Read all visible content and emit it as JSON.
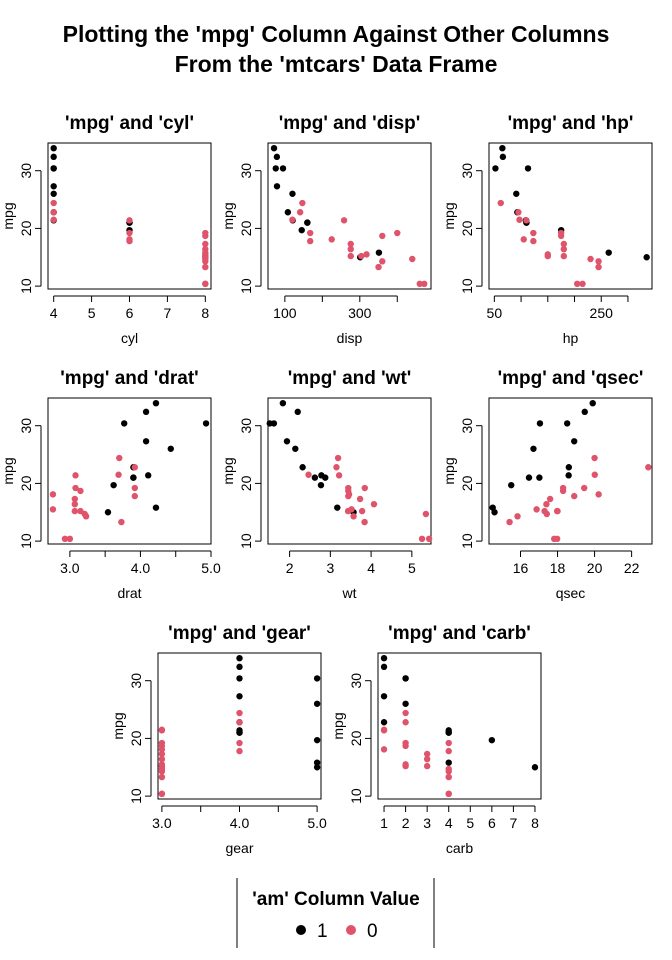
{
  "title_lines": [
    "Plotting the 'mpg' Column Against Other Columns",
    "From the 'mtcars' Data Frame"
  ],
  "legend": {
    "title": "'am' Column Value",
    "items": [
      {
        "label": "1",
        "color": "#000000"
      },
      {
        "label": "0",
        "color": "#DF536B"
      }
    ]
  },
  "chart_data": [
    {
      "type": "scatter",
      "title": "'mpg' and 'cyl'",
      "xlabel": "cyl",
      "ylabel": "mpg",
      "xlim": [
        3.85,
        8.15
      ],
      "ylim": [
        9.5,
        34.8
      ],
      "xticks": [
        4,
        5,
        6,
        7,
        8
      ],
      "xtick_labels": [
        "4",
        "5",
        "6",
        "7",
        "8"
      ],
      "yticks": [
        10,
        20,
        30
      ],
      "ytick_labels": [
        "10",
        "20",
        "30"
      ],
      "series": [
        {
          "name": "1",
          "color": "#000000",
          "x": [
            4,
            4,
            4,
            4,
            4,
            4,
            4,
            4,
            6,
            6,
            6
          ],
          "y": [
            33.9,
            32.4,
            30.4,
            30.4,
            27.3,
            26,
            21.4,
            22.8,
            21,
            21,
            19.7
          ]
        },
        {
          "name": "0",
          "color": "#DF536B",
          "x": [
            4,
            4,
            4,
            6,
            6,
            6,
            6,
            8,
            8,
            8,
            8,
            8,
            8,
            8,
            8,
            8,
            8,
            8,
            8,
            8,
            8
          ],
          "y": [
            24.4,
            22.8,
            21.5,
            21.4,
            18.1,
            19.2,
            17.8,
            18.7,
            14.3,
            16.4,
            17.3,
            15.2,
            10.4,
            10.4,
            14.7,
            15.5,
            15.2,
            13.3,
            19.2,
            15,
            15.8
          ]
        }
      ]
    },
    {
      "type": "scatter",
      "title": "'mpg' and 'disp'",
      "xlabel": "disp",
      "ylabel": "mpg",
      "xlim": [
        55,
        490
      ],
      "ylim": [
        9.5,
        34.8
      ],
      "xticks": [
        100,
        200,
        300,
        400
      ],
      "xtick_labels": [
        "100",
        "",
        "300",
        ""
      ],
      "yticks": [
        10,
        20,
        30
      ],
      "ytick_labels": [
        "10",
        "20",
        "30"
      ],
      "series": [
        {
          "name": "1",
          "color": "#000000",
          "x": [
            71.1,
            75.7,
            78.7,
            79,
            95.1,
            108,
            120.3,
            121,
            145,
            160,
            160,
            301,
            351
          ],
          "y": [
            33.9,
            30.4,
            32.4,
            27.3,
            30.4,
            22.8,
            26,
            21.4,
            19.7,
            21,
            21,
            15,
            15.8
          ]
        },
        {
          "name": "0",
          "color": "#DF536B",
          "x": [
            120.1,
            140.8,
            146.7,
            167.6,
            167.6,
            225,
            258,
            275.8,
            275.8,
            275.8,
            304,
            318,
            350,
            360,
            360,
            400,
            440,
            460,
            472
          ],
          "y": [
            21.5,
            22.8,
            24.4,
            19.2,
            17.8,
            18.1,
            21.4,
            16.4,
            17.3,
            15.2,
            15.2,
            15.5,
            13.3,
            18.7,
            14.3,
            19.2,
            14.7,
            10.4,
            10.4
          ]
        }
      ]
    },
    {
      "type": "scatter",
      "title": "'mpg' and 'hp'",
      "xlabel": "hp",
      "ylabel": "mpg",
      "xlim": [
        40,
        345
      ],
      "ylim": [
        9.5,
        34.8
      ],
      "xticks": [
        50,
        100,
        150,
        200,
        250,
        300
      ],
      "xtick_labels": [
        "50",
        "",
        "",
        "",
        "250",
        ""
      ],
      "yticks": [
        10,
        20,
        30
      ],
      "ytick_labels": [
        "10",
        "20",
        "30"
      ],
      "series": [
        {
          "name": "1",
          "color": "#000000",
          "x": [
            52,
            65,
            66,
            91,
            93,
            109,
            110,
            110,
            113,
            175,
            264,
            335
          ],
          "y": [
            30.4,
            33.9,
            32.4,
            26,
            22.8,
            21.4,
            21,
            21,
            30.4,
            19.7,
            15.8,
            15
          ]
        },
        {
          "name": "0",
          "color": "#DF536B",
          "x": [
            62,
            95,
            97,
            105,
            110,
            123,
            123,
            150,
            150,
            175,
            175,
            180,
            180,
            180,
            205,
            215,
            230,
            245,
            245
          ],
          "y": [
            24.4,
            22.8,
            21.5,
            18.1,
            21.4,
            19.2,
            17.8,
            15.5,
            15.2,
            18.7,
            19.2,
            16.4,
            17.3,
            15.2,
            10.4,
            10.4,
            14.7,
            14.3,
            13.3
          ]
        }
      ]
    },
    {
      "type": "scatter",
      "title": "'mpg' and 'drat'",
      "xlabel": "drat",
      "ylabel": "mpg",
      "xlim": [
        2.69,
        5.0
      ],
      "ylim": [
        9.5,
        34.8
      ],
      "xticks": [
        3.0,
        3.5,
        4.0,
        4.5,
        5.0
      ],
      "xtick_labels": [
        "3.0",
        "",
        "4.0",
        "",
        "5.0"
      ],
      "yticks": [
        10,
        20,
        30
      ],
      "ytick_labels": [
        "10",
        "20",
        "30"
      ],
      "series": [
        {
          "name": "1",
          "color": "#000000",
          "x": [
            3.54,
            3.62,
            3.77,
            3.9,
            3.9,
            3.9,
            4.08,
            4.08,
            4.11,
            4.22,
            4.22,
            4.43,
            4.93
          ],
          "y": [
            15,
            19.7,
            30.4,
            21,
            21,
            22.8,
            27.3,
            32.4,
            21.4,
            33.9,
            15.8,
            26,
            30.4
          ]
        },
        {
          "name": "0",
          "color": "#DF536B",
          "x": [
            2.76,
            2.76,
            2.93,
            3,
            3.07,
            3.07,
            3.07,
            3.08,
            3.08,
            3.15,
            3.15,
            3.21,
            3.23,
            3.69,
            3.7,
            3.73,
            3.92,
            3.92,
            3.92
          ],
          "y": [
            18.1,
            15.5,
            10.4,
            10.4,
            16.4,
            17.3,
            15.2,
            21.4,
            19.2,
            18.7,
            15.2,
            14.7,
            14.3,
            21.5,
            24.4,
            13.3,
            22.8,
            17.8,
            19.2
          ]
        }
      ]
    },
    {
      "type": "scatter",
      "title": "'mpg' and 'wt'",
      "xlabel": "wt",
      "ylabel": "mpg",
      "xlim": [
        1.47,
        5.47
      ],
      "ylim": [
        9.5,
        34.8
      ],
      "xticks": [
        2,
        3,
        4,
        5
      ],
      "xtick_labels": [
        "2",
        "3",
        "4",
        "5"
      ],
      "yticks": [
        10,
        20,
        30
      ],
      "ytick_labels": [
        "10",
        "20",
        "30"
      ],
      "series": [
        {
          "name": "1",
          "color": "#000000",
          "x": [
            1.513,
            1.615,
            1.835,
            1.935,
            2.14,
            2.2,
            2.32,
            2.62,
            2.77,
            2.875,
            3.17,
            3.57,
            2.78
          ],
          "y": [
            30.4,
            30.4,
            33.9,
            27.3,
            26,
            32.4,
            22.8,
            21,
            19.7,
            21,
            15.8,
            15,
            21.4
          ]
        },
        {
          "name": "0",
          "color": "#DF536B",
          "x": [
            2.465,
            3.15,
            3.19,
            3.215,
            3.435,
            3.44,
            3.44,
            3.44,
            3.46,
            3.52,
            3.57,
            3.73,
            3.78,
            3.84,
            3.845,
            4.07,
            5.25,
            5.345,
            5.424
          ],
          "y": [
            21.5,
            22.8,
            24.4,
            21.4,
            15.2,
            18.7,
            19.2,
            17.8,
            18.1,
            15.5,
            14.3,
            17.3,
            15.2,
            13.3,
            19.2,
            16.4,
            10.4,
            14.7,
            10.4
          ]
        }
      ]
    },
    {
      "type": "scatter",
      "title": "'mpg' and 'qsec'",
      "xlabel": "qsec",
      "ylabel": "mpg",
      "xlim": [
        14.3,
        23.1
      ],
      "ylim": [
        9.5,
        34.8
      ],
      "xticks": [
        16,
        18,
        20,
        22
      ],
      "xtick_labels": [
        "16",
        "18",
        "20",
        "22"
      ],
      "yticks": [
        10,
        20,
        30
      ],
      "ytick_labels": [
        "10",
        "20",
        "30"
      ],
      "series": [
        {
          "name": "1",
          "color": "#000000",
          "x": [
            14.5,
            14.6,
            15.5,
            16.46,
            16.7,
            17.02,
            17.05,
            18.52,
            18.6,
            18.61,
            18.9,
            19.47,
            19.9
          ],
          "y": [
            15.8,
            15,
            19.7,
            21,
            26,
            21,
            30.4,
            30.4,
            21.4,
            22.8,
            27.3,
            32.4,
            33.9
          ]
        },
        {
          "name": "0",
          "color": "#DF536B",
          "x": [
            15.41,
            15.84,
            16.87,
            17.3,
            17.4,
            17.42,
            17.6,
            17.82,
            17.98,
            17.98,
            18,
            18.3,
            18.9,
            19.44,
            20,
            20.01,
            20.22,
            22.9,
            18.3
          ],
          "y": [
            13.3,
            14.3,
            15.5,
            15.2,
            16.4,
            14.7,
            17.3,
            10.4,
            10.4,
            15.2,
            15.2,
            18.7,
            17.8,
            19.2,
            24.4,
            21.5,
            18.1,
            22.8,
            19.2
          ]
        }
      ]
    },
    {
      "type": "scatter",
      "title": "'mpg' and 'gear'",
      "xlabel": "gear",
      "ylabel": "mpg",
      "xlim": [
        2.95,
        5.05
      ],
      "ylim": [
        9.5,
        34.8
      ],
      "xticks": [
        3.0,
        3.5,
        4.0,
        4.5,
        5.0
      ],
      "xtick_labels": [
        "3.0",
        "",
        "4.0",
        "",
        "5.0"
      ],
      "yticks": [
        10,
        20,
        30
      ],
      "ytick_labels": [
        "10",
        "20",
        "30"
      ],
      "series": [
        {
          "name": "1",
          "color": "#000000",
          "x": [
            4,
            4,
            4,
            4,
            4,
            4,
            4,
            4,
            5,
            5,
            5,
            5,
            5
          ],
          "y": [
            21,
            21,
            22.8,
            32.4,
            30.4,
            33.9,
            27.3,
            21.4,
            26,
            30.4,
            15.8,
            19.7,
            15
          ]
        },
        {
          "name": "0",
          "color": "#DF536B",
          "x": [
            3,
            3,
            3,
            3,
            3,
            3,
            3,
            3,
            3,
            3,
            3,
            3,
            3,
            3,
            3,
            4,
            4,
            4,
            4
          ],
          "y": [
            21.4,
            18.7,
            18.1,
            14.3,
            16.4,
            17.3,
            15.2,
            10.4,
            10.4,
            14.7,
            21.5,
            15.5,
            15.2,
            13.3,
            19.2,
            24.4,
            22.8,
            19.2,
            17.8
          ]
        }
      ]
    },
    {
      "type": "scatter",
      "title": "'mpg' and 'carb'",
      "xlabel": "carb",
      "ylabel": "mpg",
      "xlim": [
        0.72,
        8.28
      ],
      "ylim": [
        9.5,
        34.8
      ],
      "xticks": [
        1,
        2,
        3,
        4,
        5,
        6,
        7,
        8
      ],
      "xtick_labels": [
        "1",
        "2",
        "3",
        "4",
        "5",
        "6",
        "7",
        "8"
      ],
      "yticks": [
        10,
        20,
        30
      ],
      "ytick_labels": [
        "10",
        "20",
        "30"
      ],
      "series": [
        {
          "name": "1",
          "color": "#000000",
          "x": [
            1,
            1,
            1,
            1,
            2,
            2,
            2,
            4,
            4,
            4,
            4,
            6,
            8
          ],
          "y": [
            22.8,
            32.4,
            33.9,
            27.3,
            30.4,
            26,
            30.4,
            21,
            21,
            21.4,
            15.8,
            19.7,
            15
          ]
        },
        {
          "name": "0",
          "color": "#DF536B",
          "x": [
            1,
            1,
            1,
            2,
            2,
            2,
            2,
            2,
            2,
            3,
            3,
            3,
            4,
            4,
            4,
            4,
            4,
            4,
            4
          ],
          "y": [
            21.4,
            18.1,
            21.5,
            18.7,
            24.4,
            22.8,
            15.5,
            15.2,
            19.2,
            16.4,
            17.3,
            15.2,
            14.3,
            10.4,
            10.4,
            14.7,
            13.3,
            19.2,
            17.8
          ]
        }
      ]
    }
  ]
}
